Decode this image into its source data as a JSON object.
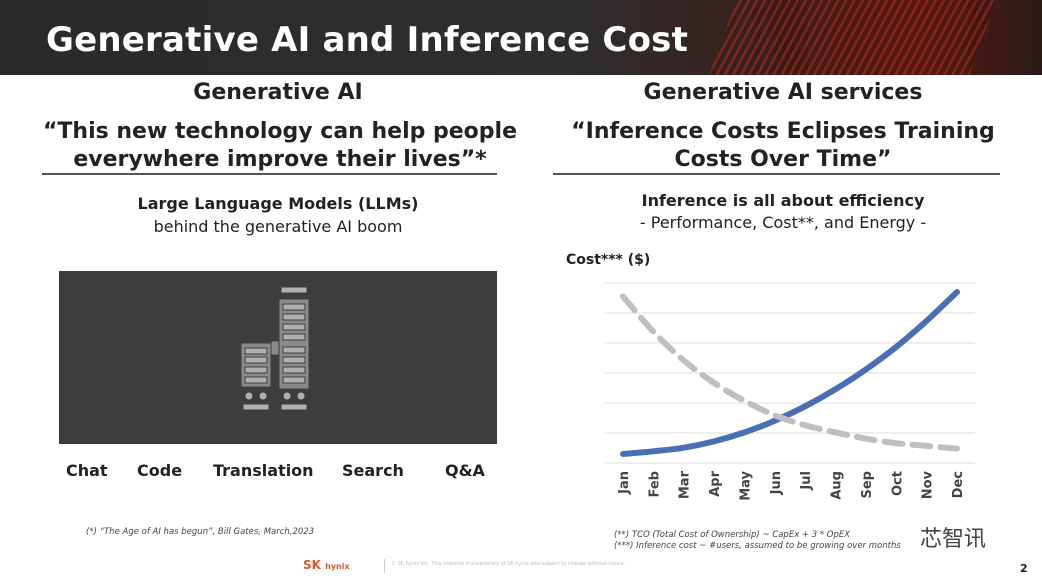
{
  "slide_title": "Generative AI and Inference Cost",
  "left": {
    "heading": "Generative AI",
    "quote_line1": "“This new technology can help people",
    "quote_line2": "everywhere improve their lives”*",
    "sub_bold": "Large Language Models (LLMs)",
    "sub_text": "behind the generative AI boom",
    "apps": [
      "Chat",
      "Code",
      "Translation",
      "Search",
      "Q&A"
    ],
    "footnote": "(*) “The Age of AI has begun”, Bill Gates, March,2023"
  },
  "right": {
    "heading": "Generative AI services",
    "quote_line1": "“Inference Costs Eclipses Training",
    "quote_line2": "Costs Over Time”",
    "sub_bold": "Inference is all about efficiency",
    "sub_text": "- Performance, Cost**, and Energy -",
    "footnote1": "(**) TCO (Total Cost of Ownership) ~ CapEx + 3 * OpEX",
    "footnote2": "(***) Inference cost ~ #users, assumed to be growing over months"
  },
  "chart_data": {
    "type": "line",
    "ylabel": "Cost*** ($)",
    "x": [
      "Jan",
      "Feb",
      "Mar",
      "Apr",
      "May",
      "Jun",
      "Jul",
      "Aug",
      "Sep",
      "Oct",
      "Nov",
      "Dec"
    ],
    "series": [
      {
        "values": [
          1.0,
          1.3,
          1.7,
          2.4,
          3.4,
          4.7,
          6.3,
          8.2,
          10.4,
          12.9,
          15.8,
          19.0
        ],
        "color": "#4a6fb5",
        "style": "solid"
      },
      {
        "values": [
          18.5,
          14.6,
          11.4,
          8.9,
          6.9,
          5.3,
          4.2,
          3.4,
          2.7,
          2.2,
          1.9,
          1.6
        ],
        "color": "#bfbfbf",
        "style": "dashed"
      }
    ],
    "ylim": [
      0,
      20
    ],
    "grid": true
  },
  "footer": {
    "logo_main": "SK",
    "logo_sub": "hynix",
    "page_number": "2",
    "watermark": "芯智讯",
    "legal": "© SK hynix Inc. This material is proprietary of SK hynix and subject to change without notice."
  },
  "colors": {
    "banner": "#2e2e2e",
    "accent": "#e4572e",
    "blue_line": "#4a6fb5",
    "grey_line": "#bfbfbf",
    "panel": "#3d3d3d"
  }
}
